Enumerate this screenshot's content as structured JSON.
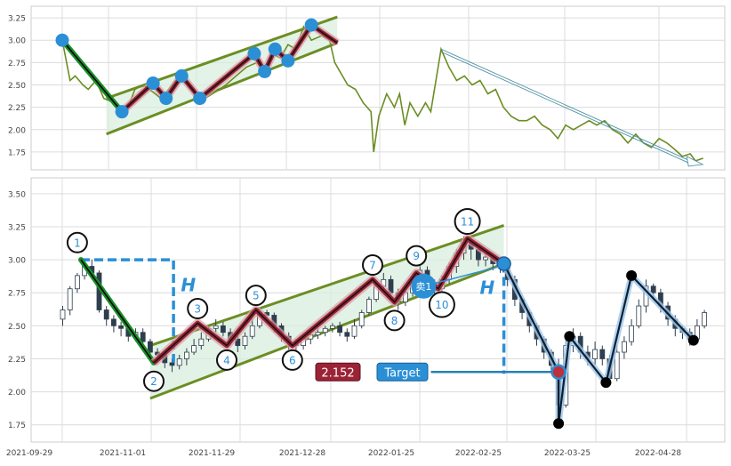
{
  "chart_data": [
    {
      "panel": "overview",
      "type": "line",
      "ylim": [
        1.55,
        3.38
      ],
      "yticks": [
        "3.25",
        "3.00",
        "2.75",
        "2.50",
        "2.25",
        "2.00",
        "1.75"
      ],
      "ytick_values": [
        3.25,
        3.0,
        2.75,
        2.5,
        2.25,
        2.0,
        1.75
      ],
      "grid": true,
      "colors": {
        "price": "#6b8e23",
        "pivot": "#2b8fd6",
        "zigzag": "#9b2335",
        "channel": "#6b8e23",
        "arrow": "#4a90a4"
      },
      "price_line": [
        [
          0,
          3.0
        ],
        [
          3,
          2.55
        ],
        [
          5,
          2.6
        ],
        [
          8,
          2.5
        ],
        [
          10,
          2.45
        ],
        [
          13,
          2.55
        ],
        [
          16,
          2.35
        ],
        [
          20,
          2.3
        ],
        [
          23,
          2.2
        ],
        [
          26,
          2.3
        ],
        [
          28,
          2.45
        ],
        [
          31,
          2.5
        ],
        [
          35,
          2.42
        ],
        [
          38,
          2.35
        ],
        [
          41,
          2.45
        ],
        [
          45,
          2.6
        ],
        [
          48,
          2.5
        ],
        [
          52,
          2.38
        ],
        [
          55,
          2.35
        ],
        [
          59,
          2.42
        ],
        [
          63,
          2.5
        ],
        [
          67,
          2.6
        ],
        [
          71,
          2.7
        ],
        [
          75,
          2.75
        ],
        [
          78,
          2.65
        ],
        [
          81,
          2.85
        ],
        [
          84,
          2.8
        ],
        [
          87,
          2.95
        ],
        [
          90,
          2.9
        ],
        [
          93,
          3.15
        ],
        [
          96,
          3.0
        ],
        [
          100,
          3.05
        ],
        [
          103,
          3.0
        ],
        [
          105,
          2.75
        ],
        [
          108,
          2.6
        ],
        [
          110,
          2.5
        ],
        [
          113,
          2.45
        ],
        [
          116,
          2.3
        ],
        [
          119,
          2.2
        ],
        [
          120,
          1.75
        ],
        [
          122,
          2.15
        ],
        [
          125,
          2.4
        ],
        [
          128,
          2.25
        ],
        [
          130,
          2.4
        ],
        [
          132,
          2.05
        ],
        [
          134,
          2.3
        ],
        [
          137,
          2.15
        ],
        [
          140,
          2.3
        ],
        [
          142,
          2.2
        ],
        [
          146,
          2.9
        ],
        [
          149,
          2.7
        ],
        [
          152,
          2.55
        ],
        [
          155,
          2.6
        ],
        [
          158,
          2.5
        ],
        [
          161,
          2.55
        ],
        [
          164,
          2.4
        ],
        [
          167,
          2.45
        ],
        [
          170,
          2.25
        ],
        [
          173,
          2.15
        ],
        [
          176,
          2.1
        ],
        [
          179,
          2.1
        ],
        [
          182,
          2.15
        ],
        [
          185,
          2.05
        ],
        [
          188,
          2.0
        ],
        [
          191,
          1.9
        ],
        [
          194,
          2.05
        ],
        [
          197,
          2.0
        ],
        [
          200,
          2.05
        ],
        [
          203,
          2.1
        ],
        [
          206,
          2.05
        ],
        [
          209,
          2.1
        ],
        [
          212,
          2.0
        ],
        [
          215,
          1.95
        ],
        [
          218,
          1.85
        ],
        [
          221,
          1.95
        ],
        [
          224,
          1.85
        ],
        [
          227,
          1.8
        ],
        [
          230,
          1.9
        ],
        [
          233,
          1.85
        ],
        [
          236,
          1.78
        ],
        [
          239,
          1.7
        ],
        [
          242,
          1.73
        ],
        [
          244,
          1.65
        ],
        [
          247,
          1.68
        ]
      ],
      "zigzag": [
        [
          0,
          3.0
        ],
        [
          23,
          2.2
        ],
        [
          35,
          2.52
        ],
        [
          40,
          2.35
        ],
        [
          46,
          2.6
        ],
        [
          53,
          2.35
        ],
        [
          74,
          2.85
        ],
        [
          78,
          2.65
        ],
        [
          82,
          2.9
        ],
        [
          87,
          2.77
        ],
        [
          96,
          3.17
        ],
        [
          106,
          2.97
        ]
      ],
      "pivot_markers": [
        [
          0,
          3.0
        ],
        [
          23,
          2.2
        ],
        [
          35,
          2.52
        ],
        [
          40,
          2.35
        ],
        [
          46,
          2.6
        ],
        [
          53,
          2.35
        ],
        [
          74,
          2.85
        ],
        [
          78,
          2.65
        ],
        [
          82,
          2.9
        ],
        [
          87,
          2.77
        ],
        [
          96,
          3.17
        ]
      ],
      "channel_upper": [
        [
          17,
          2.35
        ],
        [
          106,
          3.26
        ]
      ],
      "channel_lower": [
        [
          17,
          1.95
        ],
        [
          106,
          2.97
        ]
      ],
      "projection_arrow": [
        [
          146,
          2.9
        ],
        [
          242,
          1.65
        ]
      ]
    },
    {
      "panel": "detail",
      "type": "candlestick",
      "ylim": [
        1.62,
        3.62
      ],
      "yticks": [
        "3.50",
        "3.25",
        "3.00",
        "2.75",
        "2.50",
        "2.25",
        "2.00",
        "1.75"
      ],
      "ytick_values": [
        3.5,
        3.25,
        3.0,
        2.75,
        2.5,
        2.25,
        2.0,
        1.75
      ],
      "x_dates": [
        "2021-09-29",
        "2021-11-01",
        "2021-11-29",
        "2021-12-28",
        "2022-01-25",
        "2022-02-25",
        "2022-03-25",
        "2022-04-28"
      ],
      "grid": true,
      "colors": {
        "up": "#ffffff",
        "down": "#2f3e4e",
        "zigzag": "#9b2335",
        "channel_fill": "#d8eedd",
        "channel": "#6b8e23",
        "pattern_leg": "#1a8f2a",
        "measure": "#2b8fd6",
        "forecast": "#0b1f33",
        "sell_marker": "#2b8fd6"
      },
      "candles": [
        [
          0,
          2.55,
          2.62,
          2.5,
          2.65
        ],
        [
          1,
          2.62,
          2.78,
          2.58,
          2.8
        ],
        [
          2,
          2.78,
          2.88,
          2.75,
          2.9
        ],
        [
          3,
          2.88,
          2.95,
          2.85,
          2.97
        ],
        [
          4,
          2.95,
          2.9,
          2.85,
          3.0
        ],
        [
          5,
          2.9,
          2.62,
          2.6,
          2.92
        ],
        [
          6,
          2.62,
          2.55,
          2.5,
          2.65
        ],
        [
          7,
          2.55,
          2.5,
          2.45,
          2.58
        ],
        [
          8,
          2.5,
          2.48,
          2.42,
          2.53
        ],
        [
          9,
          2.48,
          2.42,
          2.38,
          2.5
        ],
        [
          10,
          2.42,
          2.45,
          2.38,
          2.48
        ],
        [
          11,
          2.45,
          2.38,
          2.35,
          2.48
        ],
        [
          12,
          2.38,
          2.3,
          2.28,
          2.4
        ],
        [
          13,
          2.3,
          2.28,
          2.22,
          2.33
        ],
        [
          14,
          2.28,
          2.22,
          2.18,
          2.3
        ],
        [
          15,
          2.22,
          2.2,
          2.15,
          2.25
        ],
        [
          16,
          2.2,
          2.25,
          2.17,
          2.28
        ],
        [
          17,
          2.25,
          2.3,
          2.2,
          2.33
        ],
        [
          18,
          2.3,
          2.35,
          2.28,
          2.4
        ],
        [
          19,
          2.35,
          2.4,
          2.32,
          2.45
        ],
        [
          20,
          2.4,
          2.48,
          2.38,
          2.5
        ],
        [
          21,
          2.48,
          2.5,
          2.45,
          2.55
        ],
        [
          22,
          2.5,
          2.45,
          2.42,
          2.53
        ],
        [
          23,
          2.45,
          2.4,
          2.35,
          2.48
        ],
        [
          24,
          2.4,
          2.35,
          2.3,
          2.43
        ],
        [
          25,
          2.35,
          2.42,
          2.32,
          2.45
        ],
        [
          26,
          2.42,
          2.5,
          2.4,
          2.55
        ],
        [
          27,
          2.5,
          2.6,
          2.48,
          2.63
        ],
        [
          28,
          2.6,
          2.58,
          2.52,
          2.62
        ],
        [
          29,
          2.58,
          2.5,
          2.45,
          2.6
        ],
        [
          30,
          2.5,
          2.42,
          2.38,
          2.52
        ],
        [
          31,
          2.42,
          2.38,
          2.32,
          2.45
        ],
        [
          32,
          2.38,
          2.35,
          2.3,
          2.4
        ],
        [
          33,
          2.35,
          2.4,
          2.32,
          2.43
        ],
        [
          34,
          2.4,
          2.43,
          2.36,
          2.46
        ],
        [
          35,
          2.43,
          2.45,
          2.4,
          2.48
        ],
        [
          36,
          2.45,
          2.48,
          2.42,
          2.5
        ],
        [
          37,
          2.48,
          2.5,
          2.45,
          2.52
        ],
        [
          38,
          2.5,
          2.45,
          2.42,
          2.53
        ],
        [
          39,
          2.45,
          2.42,
          2.38,
          2.48
        ],
        [
          40,
          2.42,
          2.5,
          2.4,
          2.55
        ],
        [
          41,
          2.5,
          2.6,
          2.48,
          2.62
        ],
        [
          42,
          2.6,
          2.7,
          2.58,
          2.72
        ],
        [
          43,
          2.7,
          2.8,
          2.68,
          2.82
        ],
        [
          44,
          2.8,
          2.85,
          2.75,
          2.9
        ],
        [
          45,
          2.85,
          2.75,
          2.7,
          2.88
        ],
        [
          46,
          2.75,
          2.68,
          2.62,
          2.78
        ],
        [
          47,
          2.68,
          2.75,
          2.65,
          2.8
        ],
        [
          48,
          2.75,
          2.85,
          2.72,
          2.9
        ],
        [
          49,
          2.85,
          2.92,
          2.8,
          2.95
        ],
        [
          50,
          2.92,
          2.82,
          2.78,
          2.95
        ],
        [
          51,
          2.82,
          2.78,
          2.72,
          2.85
        ],
        [
          52,
          2.78,
          2.85,
          2.75,
          2.88
        ],
        [
          53,
          2.85,
          2.95,
          2.82,
          2.98
        ],
        [
          54,
          2.95,
          3.05,
          2.9,
          3.08
        ],
        [
          55,
          3.05,
          3.15,
          3.0,
          3.18
        ],
        [
          56,
          3.15,
          3.08,
          3.0,
          3.18
        ],
        [
          57,
          3.08,
          3.0,
          2.95,
          3.1
        ],
        [
          58,
          3.0,
          3.02,
          2.95,
          3.05
        ],
        [
          59,
          3.02,
          2.97,
          2.92,
          3.05
        ],
        [
          60,
          2.97,
          2.98,
          2.9,
          3.0
        ],
        [
          61,
          2.98,
          2.85,
          2.8,
          3.0
        ],
        [
          62,
          2.85,
          2.7,
          2.65,
          2.88
        ],
        [
          63,
          2.7,
          2.6,
          2.55,
          2.72
        ],
        [
          64,
          2.6,
          2.5,
          2.45,
          2.62
        ],
        [
          65,
          2.5,
          2.4,
          2.35,
          2.52
        ],
        [
          66,
          2.4,
          2.3,
          2.25,
          2.42
        ],
        [
          67,
          2.3,
          2.2,
          2.15,
          2.32
        ],
        [
          68,
          2.2,
          1.9,
          1.75,
          2.25
        ],
        [
          69,
          1.9,
          2.35,
          1.88,
          2.4
        ],
        [
          70,
          2.35,
          2.42,
          2.3,
          2.48
        ],
        [
          71,
          2.42,
          2.3,
          2.25,
          2.45
        ],
        [
          72,
          2.3,
          2.25,
          2.2,
          2.35
        ],
        [
          73,
          2.25,
          2.32,
          2.2,
          2.38
        ],
        [
          74,
          2.32,
          2.25,
          2.2,
          2.35
        ],
        [
          75,
          2.25,
          2.1,
          2.05,
          2.28
        ],
        [
          76,
          2.1,
          2.3,
          2.08,
          2.35
        ],
        [
          77,
          2.3,
          2.38,
          2.25,
          2.42
        ],
        [
          78,
          2.38,
          2.5,
          2.35,
          2.55
        ],
        [
          79,
          2.5,
          2.65,
          2.48,
          2.7
        ],
        [
          80,
          2.65,
          2.8,
          2.6,
          2.85
        ],
        [
          81,
          2.8,
          2.75,
          2.7,
          2.82
        ],
        [
          82,
          2.75,
          2.65,
          2.6,
          2.78
        ],
        [
          83,
          2.65,
          2.55,
          2.5,
          2.68
        ],
        [
          84,
          2.55,
          2.48,
          2.42,
          2.58
        ],
        [
          85,
          2.48,
          2.45,
          2.4,
          2.5
        ],
        [
          86,
          2.45,
          2.4,
          2.35,
          2.48
        ],
        [
          87,
          2.4,
          2.5,
          2.38,
          2.55
        ],
        [
          88,
          2.5,
          2.6,
          2.48,
          2.62
        ]
      ],
      "zigzag": [
        [
          2.5,
          3.0
        ],
        [
          12.5,
          2.22
        ],
        [
          18.5,
          2.52
        ],
        [
          22.5,
          2.35
        ],
        [
          26.5,
          2.62
        ],
        [
          31.5,
          2.35
        ],
        [
          42.5,
          2.85
        ],
        [
          45.5,
          2.68
        ],
        [
          48.5,
          2.9
        ],
        [
          51.5,
          2.78
        ],
        [
          55.5,
          3.16
        ],
        [
          60.5,
          2.97
        ]
      ],
      "channel_upper": [
        [
          12,
          2.35
        ],
        [
          60.5,
          3.26
        ]
      ],
      "channel_lower": [
        [
          12,
          1.95
        ],
        [
          60.5,
          2.97
        ]
      ],
      "pattern_leg": [
        [
          2.5,
          3.0
        ],
        [
          12.5,
          2.22
        ]
      ],
      "forecast_path": [
        [
          60.5,
          2.97
        ],
        [
          68,
          2.15
        ],
        [
          68,
          1.76
        ],
        [
          69.5,
          2.42
        ],
        [
          74.5,
          2.07
        ],
        [
          78,
          2.88
        ],
        [
          86.5,
          2.39
        ]
      ],
      "forecast_nodes": [
        [
          68,
          1.76
        ],
        [
          69.5,
          2.42
        ],
        [
          74.5,
          2.07
        ],
        [
          78,
          2.88
        ],
        [
          86.5,
          2.39
        ]
      ],
      "target_point": [
        68,
        2.15
      ],
      "sell_point": [
        49.5,
        2.8
      ],
      "pivot_labels": [
        {
          "label": "1",
          "x": 2.0,
          "y": 3.13
        },
        {
          "label": "2",
          "x": 12.5,
          "y": 2.08
        },
        {
          "label": "3",
          "x": 18.5,
          "y": 2.63
        },
        {
          "label": "4",
          "x": 22.5,
          "y": 2.24
        },
        {
          "label": "5",
          "x": 26.5,
          "y": 2.73
        },
        {
          "label": "6",
          "x": 31.5,
          "y": 2.24
        },
        {
          "label": "7",
          "x": 42.5,
          "y": 2.96
        },
        {
          "label": "8",
          "x": 45.5,
          "y": 2.54
        },
        {
          "label": "9",
          "x": 48.5,
          "y": 3.03
        },
        {
          "label": "10",
          "x": 52.0,
          "y": 2.66
        },
        {
          "label": "11",
          "x": 55.5,
          "y": 3.29
        }
      ],
      "annotations": {
        "h_label": "H",
        "sell_label": "卖1",
        "price_box": "2.152",
        "target_box": "Target"
      }
    }
  ]
}
